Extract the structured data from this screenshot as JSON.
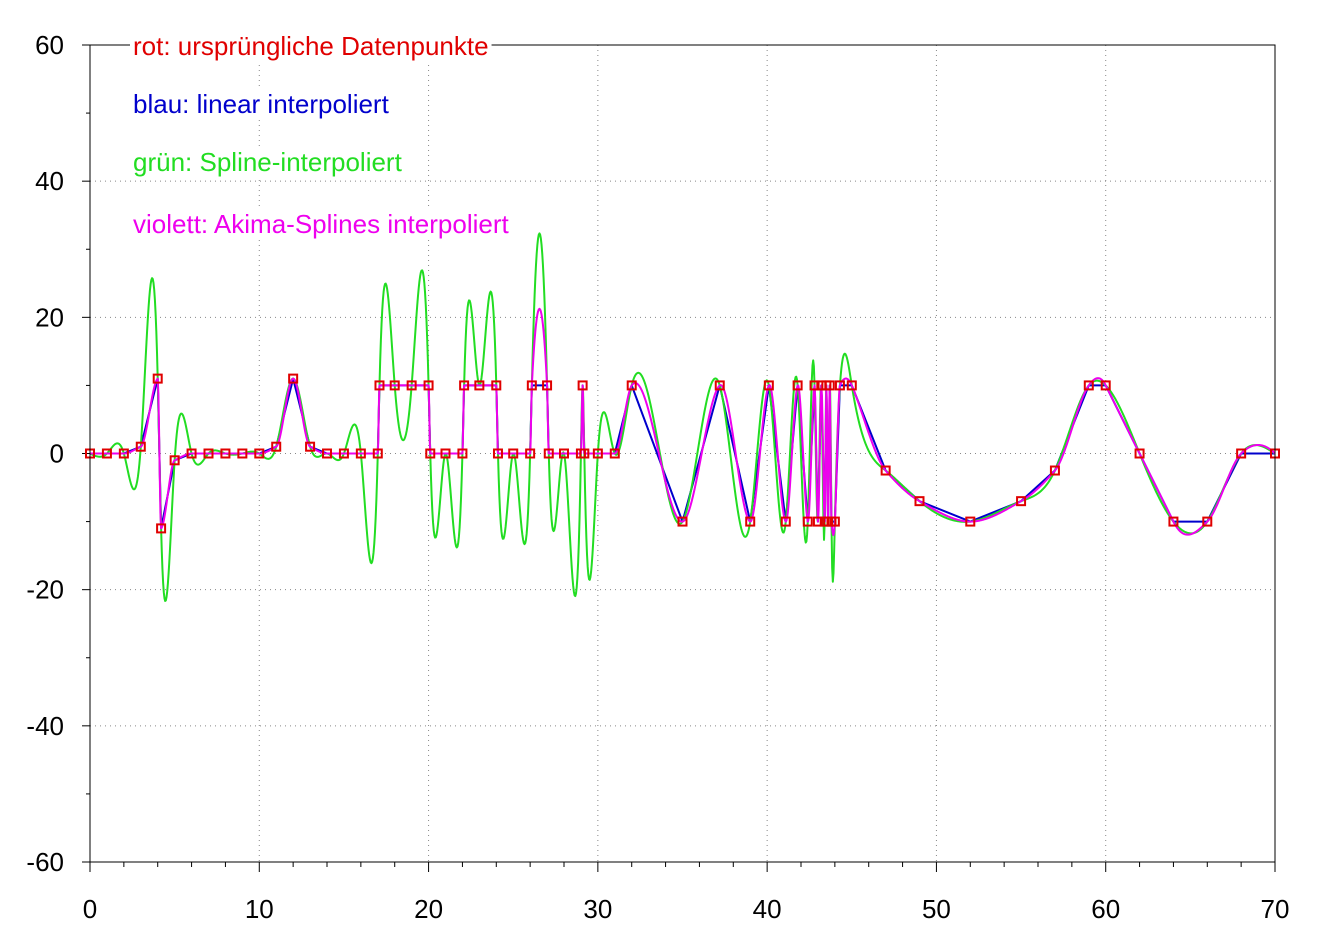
{
  "chart_data": {
    "type": "line",
    "xlim": [
      0,
      70
    ],
    "ylim": [
      -60,
      60
    ],
    "x_ticks": [
      "0",
      "10",
      "20",
      "30",
      "40",
      "50",
      "60",
      "70"
    ],
    "y_ticks": [
      "60",
      "40",
      "20",
      "0",
      "-20",
      "-40",
      "-60"
    ],
    "grid": true,
    "legend": [
      {
        "text": "rot: ursprüngliche Datenpunkte",
        "color": "#e00000"
      },
      {
        "text": "blau: linear interpoliert",
        "color": "#0000cc"
      },
      {
        "text": "grün: Spline-interpoliert",
        "color": "#22dd22"
      },
      {
        "text": "violett: Akima-Splines interpoliert",
        "color": "#ee00ee"
      }
    ],
    "series": [
      {
        "name": "rot: ursprüngliche Datenpunkte",
        "color": "#e00000",
        "points": [
          [
            0,
            0
          ],
          [
            1,
            0
          ],
          [
            2,
            0
          ],
          [
            3,
            1
          ],
          [
            4,
            11
          ],
          [
            4.2,
            -11
          ],
          [
            5,
            -1
          ],
          [
            6,
            0
          ],
          [
            7,
            0
          ],
          [
            8,
            0
          ],
          [
            9,
            0
          ],
          [
            10,
            0
          ],
          [
            11,
            1
          ],
          [
            12,
            11
          ],
          [
            13,
            1
          ],
          [
            14,
            0
          ],
          [
            15,
            0
          ],
          [
            16,
            0
          ],
          [
            17,
            0
          ],
          [
            17.1,
            10
          ],
          [
            18,
            10
          ],
          [
            19,
            10
          ],
          [
            20,
            10
          ],
          [
            20.1,
            0
          ],
          [
            21,
            0
          ],
          [
            22,
            0
          ],
          [
            22.1,
            10
          ],
          [
            23,
            10
          ],
          [
            24,
            10
          ],
          [
            24.1,
            0
          ],
          [
            25,
            0
          ],
          [
            26,
            0
          ],
          [
            26.1,
            10
          ],
          [
            27,
            10
          ],
          [
            27.1,
            0
          ],
          [
            28,
            0
          ],
          [
            29,
            0
          ],
          [
            29.1,
            10
          ],
          [
            29.2,
            0
          ],
          [
            30,
            0
          ],
          [
            31,
            0
          ],
          [
            32,
            10
          ],
          [
            35,
            -10
          ],
          [
            37.2,
            10
          ],
          [
            39,
            -10
          ],
          [
            40.1,
            10
          ],
          [
            41.1,
            -10
          ],
          [
            41.8,
            10
          ],
          [
            42.4,
            -10
          ],
          [
            42.8,
            10
          ],
          [
            43.0,
            -10
          ],
          [
            43.2,
            10
          ],
          [
            43.4,
            -10
          ],
          [
            43.5,
            10
          ],
          [
            43.6,
            -10
          ],
          [
            43.7,
            10
          ],
          [
            43.8,
            -10
          ],
          [
            44.0,
            -10
          ],
          [
            44.3,
            10
          ],
          [
            45.0,
            10
          ],
          [
            47,
            -2.5
          ],
          [
            49,
            -7
          ],
          [
            52,
            -10
          ],
          [
            55,
            -7
          ],
          [
            57,
            -2.5
          ],
          [
            59,
            10
          ],
          [
            60,
            10
          ],
          [
            62,
            0
          ],
          [
            64,
            -10
          ],
          [
            66,
            -10
          ],
          [
            68,
            0
          ],
          [
            70,
            0
          ]
        ]
      },
      {
        "name": "blau: linear interpoliert",
        "color": "#0000cc",
        "style": "linear"
      },
      {
        "name": "grün: Spline-interpoliert",
        "color": "#22dd22",
        "style": "spline",
        "clip": [
          -60,
          60
        ]
      },
      {
        "name": "violett: Akima-Splines interpoliert",
        "color": "#ee00ee",
        "style": "akima"
      }
    ]
  }
}
